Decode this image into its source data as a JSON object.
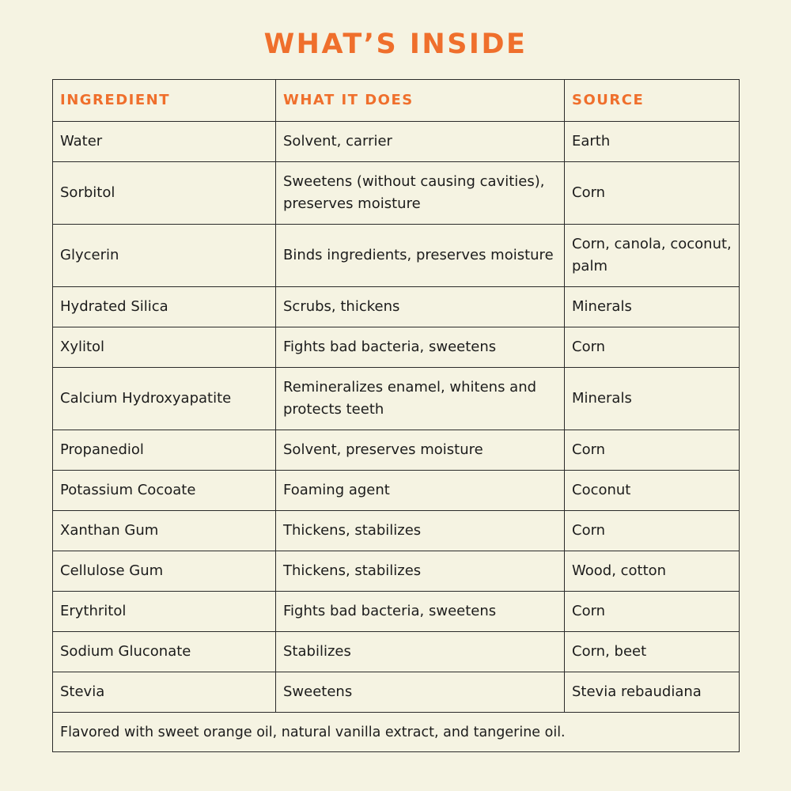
{
  "title": "WHAT’S INSIDE",
  "colors": {
    "accent": "#ef6f2c",
    "background": "#f5f3e2",
    "text": "#1c1c1c"
  },
  "headers": [
    "INGREDIENT",
    "WHAT IT DOES",
    "SOURCE"
  ],
  "rows": [
    [
      "Water",
      "Solvent, carrier",
      "Earth"
    ],
    [
      "Sorbitol",
      "Sweetens (without causing cavities), preserves moisture",
      "Corn"
    ],
    [
      "Glycerin",
      "Binds ingredients, preserves moisture",
      "Corn, canola, coconut, palm"
    ],
    [
      "Hydrated Silica",
      "Scrubs, thickens",
      "Minerals"
    ],
    [
      "Xylitol",
      "Fights bad bacteria, sweetens",
      "Corn"
    ],
    [
      "Calcium Hydroxyapatite",
      "Remineralizes enamel, whitens and protects teeth",
      "Minerals"
    ],
    [
      "Propanediol",
      "Solvent, preserves moisture",
      "Corn"
    ],
    [
      "Potassium Cocoate",
      "Foaming agent",
      "Coconut"
    ],
    [
      "Xanthan Gum",
      "Thickens, stabilizes",
      "Corn"
    ],
    [
      "Cellulose Gum",
      "Thickens, stabilizes",
      "Wood, cotton"
    ],
    [
      "Erythritol",
      "Fights bad bacteria, sweetens",
      "Corn"
    ],
    [
      "Sodium Gluconate",
      "Stabilizes",
      "Corn, beet"
    ],
    [
      "Stevia",
      "Sweetens",
      "Stevia rebaudiana"
    ]
  ],
  "footnote": "Flavored with sweet orange oil, natural vanilla extract, and tangerine oil."
}
